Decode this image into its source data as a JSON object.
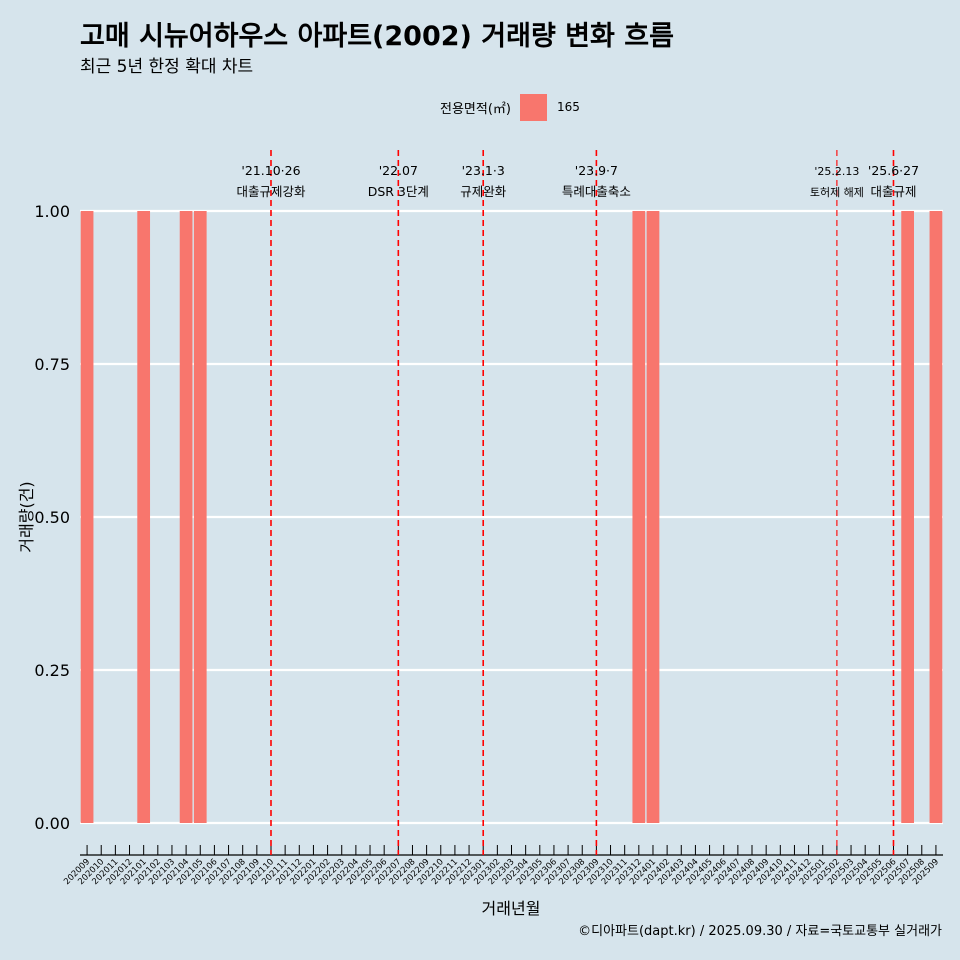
{
  "chart_data": {
    "type": "bar",
    "title": "고매 시뉴어하우스 아파트(2002) 거래량 변화 흐름",
    "subtitle": "최근 5년 한정 확대 차트",
    "xlabel": "거래년월",
    "ylabel": "거래량(건)",
    "ylim": [
      0,
      1
    ],
    "yticks": [
      "0.00",
      "0.25",
      "0.50",
      "0.75",
      "1.00"
    ],
    "categories": [
      "202009",
      "202010",
      "202011",
      "202012",
      "202101",
      "202102",
      "202103",
      "202104",
      "202105",
      "202106",
      "202107",
      "202108",
      "202109",
      "202110",
      "202111",
      "202112",
      "202201",
      "202202",
      "202203",
      "202204",
      "202205",
      "202206",
      "202207",
      "202208",
      "202209",
      "202210",
      "202211",
      "202212",
      "202301",
      "202302",
      "202303",
      "202304",
      "202305",
      "202306",
      "202307",
      "202308",
      "202309",
      "202310",
      "202311",
      "202312",
      "202401",
      "202402",
      "202403",
      "202404",
      "202405",
      "202406",
      "202407",
      "202408",
      "202409",
      "202410",
      "202411",
      "202412",
      "202501",
      "202502",
      "202503",
      "202504",
      "202505",
      "202506",
      "202507",
      "202508",
      "202509"
    ],
    "legend_title": "전용면적(㎡)",
    "series": [
      {
        "name": "165",
        "color": "#f8766d",
        "values": [
          1,
          0,
          0,
          0,
          1,
          0,
          0,
          1,
          1,
          0,
          0,
          0,
          0,
          0,
          0,
          0,
          0,
          0,
          0,
          0,
          0,
          0,
          0,
          0,
          0,
          0,
          0,
          0,
          0,
          0,
          0,
          0,
          0,
          0,
          0,
          0,
          0,
          0,
          0,
          1,
          1,
          0,
          0,
          0,
          0,
          0,
          0,
          0,
          0,
          0,
          0,
          0,
          0,
          0,
          0,
          0,
          0,
          0,
          1,
          0,
          1
        ]
      }
    ],
    "annotations": [
      {
        "category": "202110",
        "date": "'21.10·26",
        "label": "대출규제강화",
        "style": "dashed"
      },
      {
        "category": "202207",
        "date": "'22.07",
        "label": "DSR 3단계",
        "style": "dashed"
      },
      {
        "category": "202301",
        "date": "'23.1·3",
        "label": "규제완화",
        "style": "dashed"
      },
      {
        "category": "202309",
        "date": "'23.9·7",
        "label": "특례대출축소",
        "style": "dashed"
      },
      {
        "category": "202502",
        "date": "'25.2.13",
        "label": "토허제 해제",
        "style": "dashed-thin"
      },
      {
        "category": "202506",
        "date": "'25.6·27",
        "label": "대출규제",
        "style": "dashed"
      }
    ]
  },
  "caption": "©디아파트(dapt.kr) / 2025.09.30 / 자료=국토교통부 실거래가"
}
